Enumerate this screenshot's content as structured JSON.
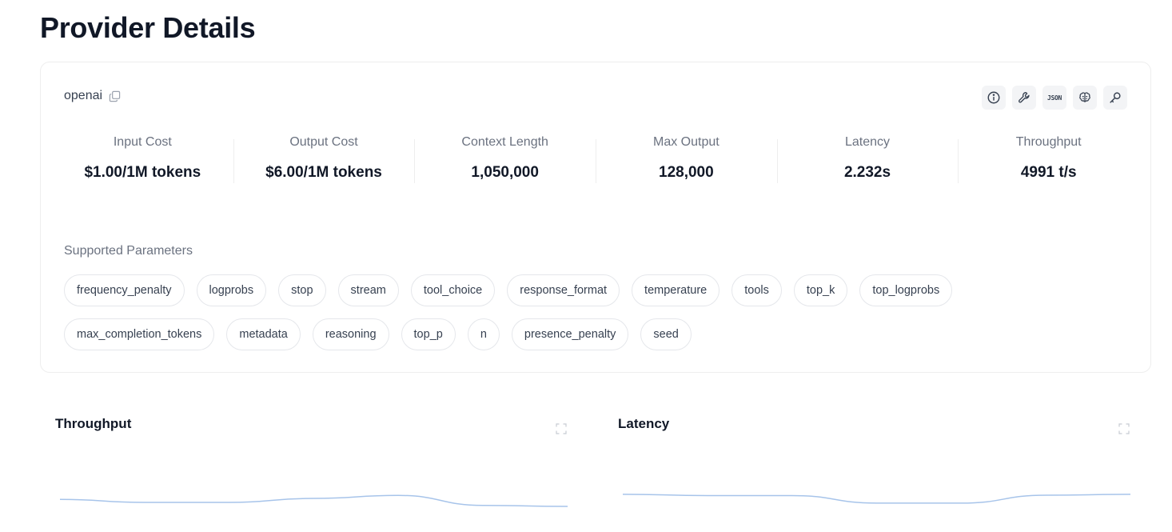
{
  "page": {
    "title": "Provider Details"
  },
  "provider": {
    "name": "openai",
    "tool_icons": [
      "info-icon",
      "wrench-icon",
      "json-icon",
      "brain-icon",
      "key-icon"
    ],
    "json_label": "JSON"
  },
  "stats": [
    {
      "label": "Input Cost",
      "value": "$1.00/1M tokens"
    },
    {
      "label": "Output Cost",
      "value": "$6.00/1M tokens"
    },
    {
      "label": "Context Length",
      "value": "1,050,000"
    },
    {
      "label": "Max Output",
      "value": "128,000"
    },
    {
      "label": "Latency",
      "value": "2.232s"
    },
    {
      "label": "Throughput",
      "value": "4991 t/s"
    }
  ],
  "parameters": {
    "title": "Supported Parameters",
    "items": [
      "frequency_penalty",
      "logprobs",
      "stop",
      "stream",
      "tool_choice",
      "response_format",
      "temperature",
      "tools",
      "top_k",
      "top_logprobs",
      "max_completion_tokens",
      "metadata",
      "reasoning",
      "top_p",
      "n",
      "presence_penalty",
      "seed"
    ]
  },
  "charts": {
    "line_color": "#a7c4ea",
    "throughput": {
      "title": "Throughput",
      "values": [
        0.35,
        0.2,
        0.2,
        0.4,
        0.55,
        0.05,
        0.0
      ]
    },
    "latency": {
      "title": "Latency",
      "values": [
        0.55,
        0.48,
        0.48,
        0.05,
        0.05,
        0.5,
        0.55
      ]
    }
  }
}
